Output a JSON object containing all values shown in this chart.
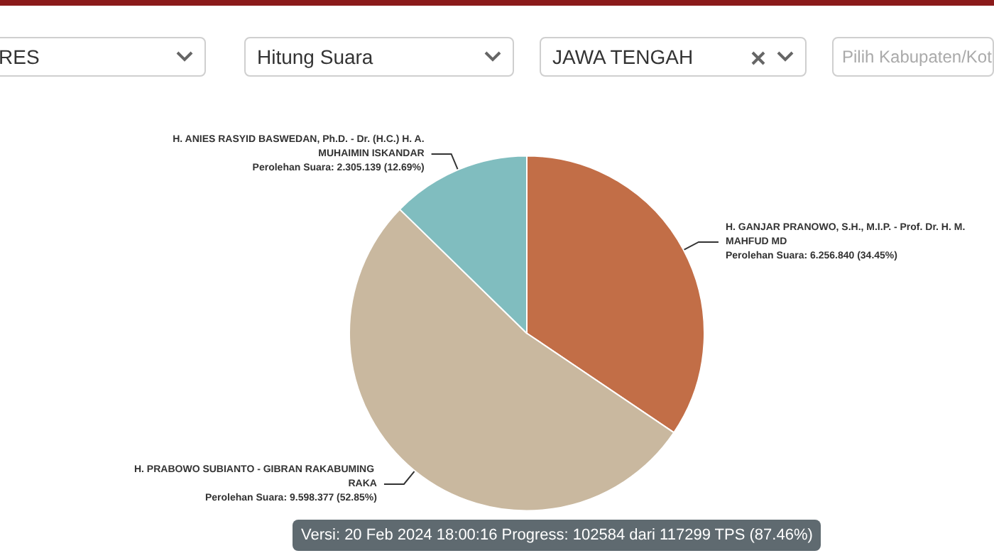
{
  "chart_data": {
    "type": "pie",
    "categories": [
      "H. GANJAR PRANOWO, S.H., M.I.P. - Prof. Dr. H. M. MAHFUD MD",
      "H. PRABOWO SUBIANTO - GIBRAN RAKABUMING RAKA",
      "H. ANIES RASYID BASWEDAN, Ph.D. - Dr. (H.C.) H. A. MUHAIMIN ISKANDAR"
    ],
    "values": [
      6256840,
      9598377,
      2305139
    ],
    "colors": [
      "#c26e47",
      "#c9b89f",
      "#80bdbf"
    ],
    "value_labels": [
      "Perolehan Suara: 6.256.840 (34.45%)",
      "Perolehan Suara: 9.598.377 (52.85%)",
      "Perolehan Suara: 2.305.139 (12.69%)"
    ],
    "annotations": [
      "RES",
      "Hitung Suara",
      "JAWA TENGAH",
      "Pilih Kabupaten/Kot",
      "Versi: 20 Feb 2024 18:00:16 Progress: 102584 dari 117299 TPS (87.46%)"
    ],
    "legend": false
  }
}
